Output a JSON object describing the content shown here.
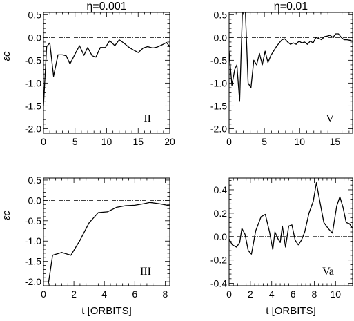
{
  "chart_data": [
    {
      "type": "line",
      "panel": "top-left",
      "title": "η=0.001",
      "ylabel": "εc",
      "xlabel": "",
      "panel_label": "II",
      "xlim": [
        0,
        20
      ],
      "ylim": [
        -2.1,
        0.55
      ],
      "xticks": [
        0,
        5,
        10,
        15,
        20
      ],
      "yticks": [
        0.5,
        0.0,
        -0.5,
        -1.0,
        -1.5,
        -2.0
      ],
      "ytick_labels": [
        "0.5",
        "0.0",
        "-0.5",
        "-1.0",
        "-1.5",
        "-2.0"
      ],
      "reference_line": 0,
      "series": [
        {
          "x": [
            0,
            0.5,
            1,
            1.6,
            2.3,
            3,
            3.6,
            4.2,
            5,
            5.7,
            6.4,
            7,
            7.7,
            8.3,
            9,
            9.8,
            10.5,
            11.3,
            12,
            12.8,
            13.5,
            14.2,
            15,
            15.8,
            16.5,
            17.3,
            18,
            18.8,
            19.5,
            20
          ],
          "y": [
            -1.5,
            -0.2,
            -0.12,
            -0.85,
            -0.38,
            -0.38,
            -0.4,
            -0.58,
            -0.36,
            -0.18,
            -0.39,
            -0.22,
            -0.4,
            -0.43,
            -0.22,
            -0.22,
            -0.07,
            -0.18,
            -0.05,
            -0.13,
            -0.21,
            -0.27,
            -0.33,
            -0.23,
            -0.2,
            -0.23,
            -0.21,
            -0.16,
            -0.11,
            -0.2
          ]
        }
      ]
    },
    {
      "type": "line",
      "panel": "top-right",
      "title": "η=0.01",
      "ylabel": "",
      "xlabel": "",
      "panel_label": "V",
      "xlim": [
        0,
        17.5
      ],
      "ylim": [
        -2.1,
        0.55
      ],
      "xticks": [
        0,
        5,
        10,
        15
      ],
      "yticks": [
        0.5,
        0.0,
        -0.5,
        -1.0,
        -1.5,
        -2.0
      ],
      "ytick_labels": [
        "0.5",
        "0.0",
        "-0.5",
        "-1.0",
        "-1.5",
        "-2.0"
      ],
      "reference_line": 0,
      "series": [
        {
          "x": [
            0,
            0.4,
            0.8,
            1.1,
            1.5,
            1.9,
            2.3,
            2.7,
            3.1,
            3.5,
            3.9,
            4.3,
            4.7,
            5.1,
            5.5,
            5.9,
            6.3,
            6.7,
            7.1,
            7.5,
            7.9,
            8.3,
            8.7,
            9.1,
            9.5,
            9.9,
            10.3,
            10.7,
            11.1,
            11.5,
            11.9,
            12.3,
            12.7,
            13.1,
            13.5,
            13.9,
            14.3,
            14.7,
            15.1,
            15.5,
            15.9,
            16.3,
            16.7,
            17.1,
            17.5
          ],
          "y": [
            -0.3,
            -1.05,
            -0.7,
            -0.6,
            -1.4,
            0.62,
            0.62,
            -1.0,
            -1.1,
            -0.5,
            -0.6,
            -0.35,
            -0.6,
            -0.3,
            -0.55,
            -0.4,
            -0.3,
            -0.2,
            -0.12,
            -0.05,
            -0.03,
            -0.1,
            -0.15,
            -0.12,
            -0.15,
            -0.08,
            -0.12,
            -0.1,
            -0.15,
            -0.08,
            -0.12,
            0.0,
            -0.02,
            -0.05,
            0.02,
            0.03,
            0.05,
            0.0,
            0.08,
            0.08,
            0.0,
            -0.05,
            -0.05,
            -0.06,
            -0.08
          ]
        }
      ]
    },
    {
      "type": "line",
      "panel": "bottom-left",
      "title": "",
      "ylabel": "εc",
      "xlabel": "t [ORBITS]",
      "panel_label": "III",
      "xlim": [
        0,
        8.3
      ],
      "ylim": [
        -2.1,
        0.55
      ],
      "xticks": [
        0,
        2,
        4,
        6,
        8
      ],
      "yticks": [
        0.5,
        0.0,
        -0.5,
        -1.0,
        -1.5,
        -2.0
      ],
      "ytick_labels": [
        "0.5",
        "0.0",
        "-0.5",
        "-1.0",
        "-1.5",
        "-2.0"
      ],
      "reference_line": 0,
      "series": [
        {
          "x": [
            0.3,
            0.6,
            1.2,
            1.8,
            2.4,
            3.0,
            3.6,
            4.2,
            4.8,
            5.4,
            6.0,
            6.6,
            7.0,
            7.6,
            8.3
          ],
          "y": [
            -2.1,
            -1.35,
            -1.28,
            -1.35,
            -0.98,
            -0.55,
            -0.3,
            -0.28,
            -0.17,
            -0.13,
            -0.12,
            -0.08,
            -0.05,
            -0.08,
            -0.13
          ]
        }
      ]
    },
    {
      "type": "line",
      "panel": "bottom-right",
      "title": "",
      "ylabel": "",
      "xlabel": "t [ORBITS]",
      "panel_label": "Va",
      "xlim": [
        0,
        11.6
      ],
      "ylim": [
        -0.42,
        0.5
      ],
      "xticks": [
        0,
        2,
        4,
        6,
        8,
        10
      ],
      "yticks": [
        0.4,
        0.2,
        0.0,
        -0.2,
        -0.4
      ],
      "ytick_labels": [
        "0.4",
        "0.2",
        "0.0",
        "-0.2",
        "-0.4"
      ],
      "reference_line": 0,
      "series": [
        {
          "x": [
            0,
            0.3,
            0.7,
            1.0,
            1.2,
            1.5,
            1.8,
            2.1,
            2.5,
            3.0,
            3.4,
            3.8,
            4.1,
            4.3,
            4.6,
            4.8,
            5.0,
            5.3,
            5.6,
            5.9,
            6.2,
            6.5,
            6.8,
            7.1,
            7.5,
            7.9,
            8.2,
            8.5,
            8.9,
            9.3,
            9.7,
            10.1,
            10.4,
            10.7,
            11.0,
            11.3,
            11.6
          ],
          "y": [
            -0.02,
            -0.07,
            -0.09,
            -0.05,
            0.07,
            0.02,
            -0.12,
            -0.15,
            0.05,
            0.17,
            0.19,
            0.04,
            -0.11,
            0.04,
            -0.02,
            -0.05,
            0.09,
            -0.09,
            0.09,
            0.1,
            -0.03,
            -0.07,
            -0.03,
            0.04,
            0.2,
            0.3,
            0.46,
            0.31,
            0.12,
            0.07,
            0.03,
            0.26,
            0.34,
            0.25,
            0.12,
            0.11,
            0.07
          ]
        }
      ]
    }
  ]
}
